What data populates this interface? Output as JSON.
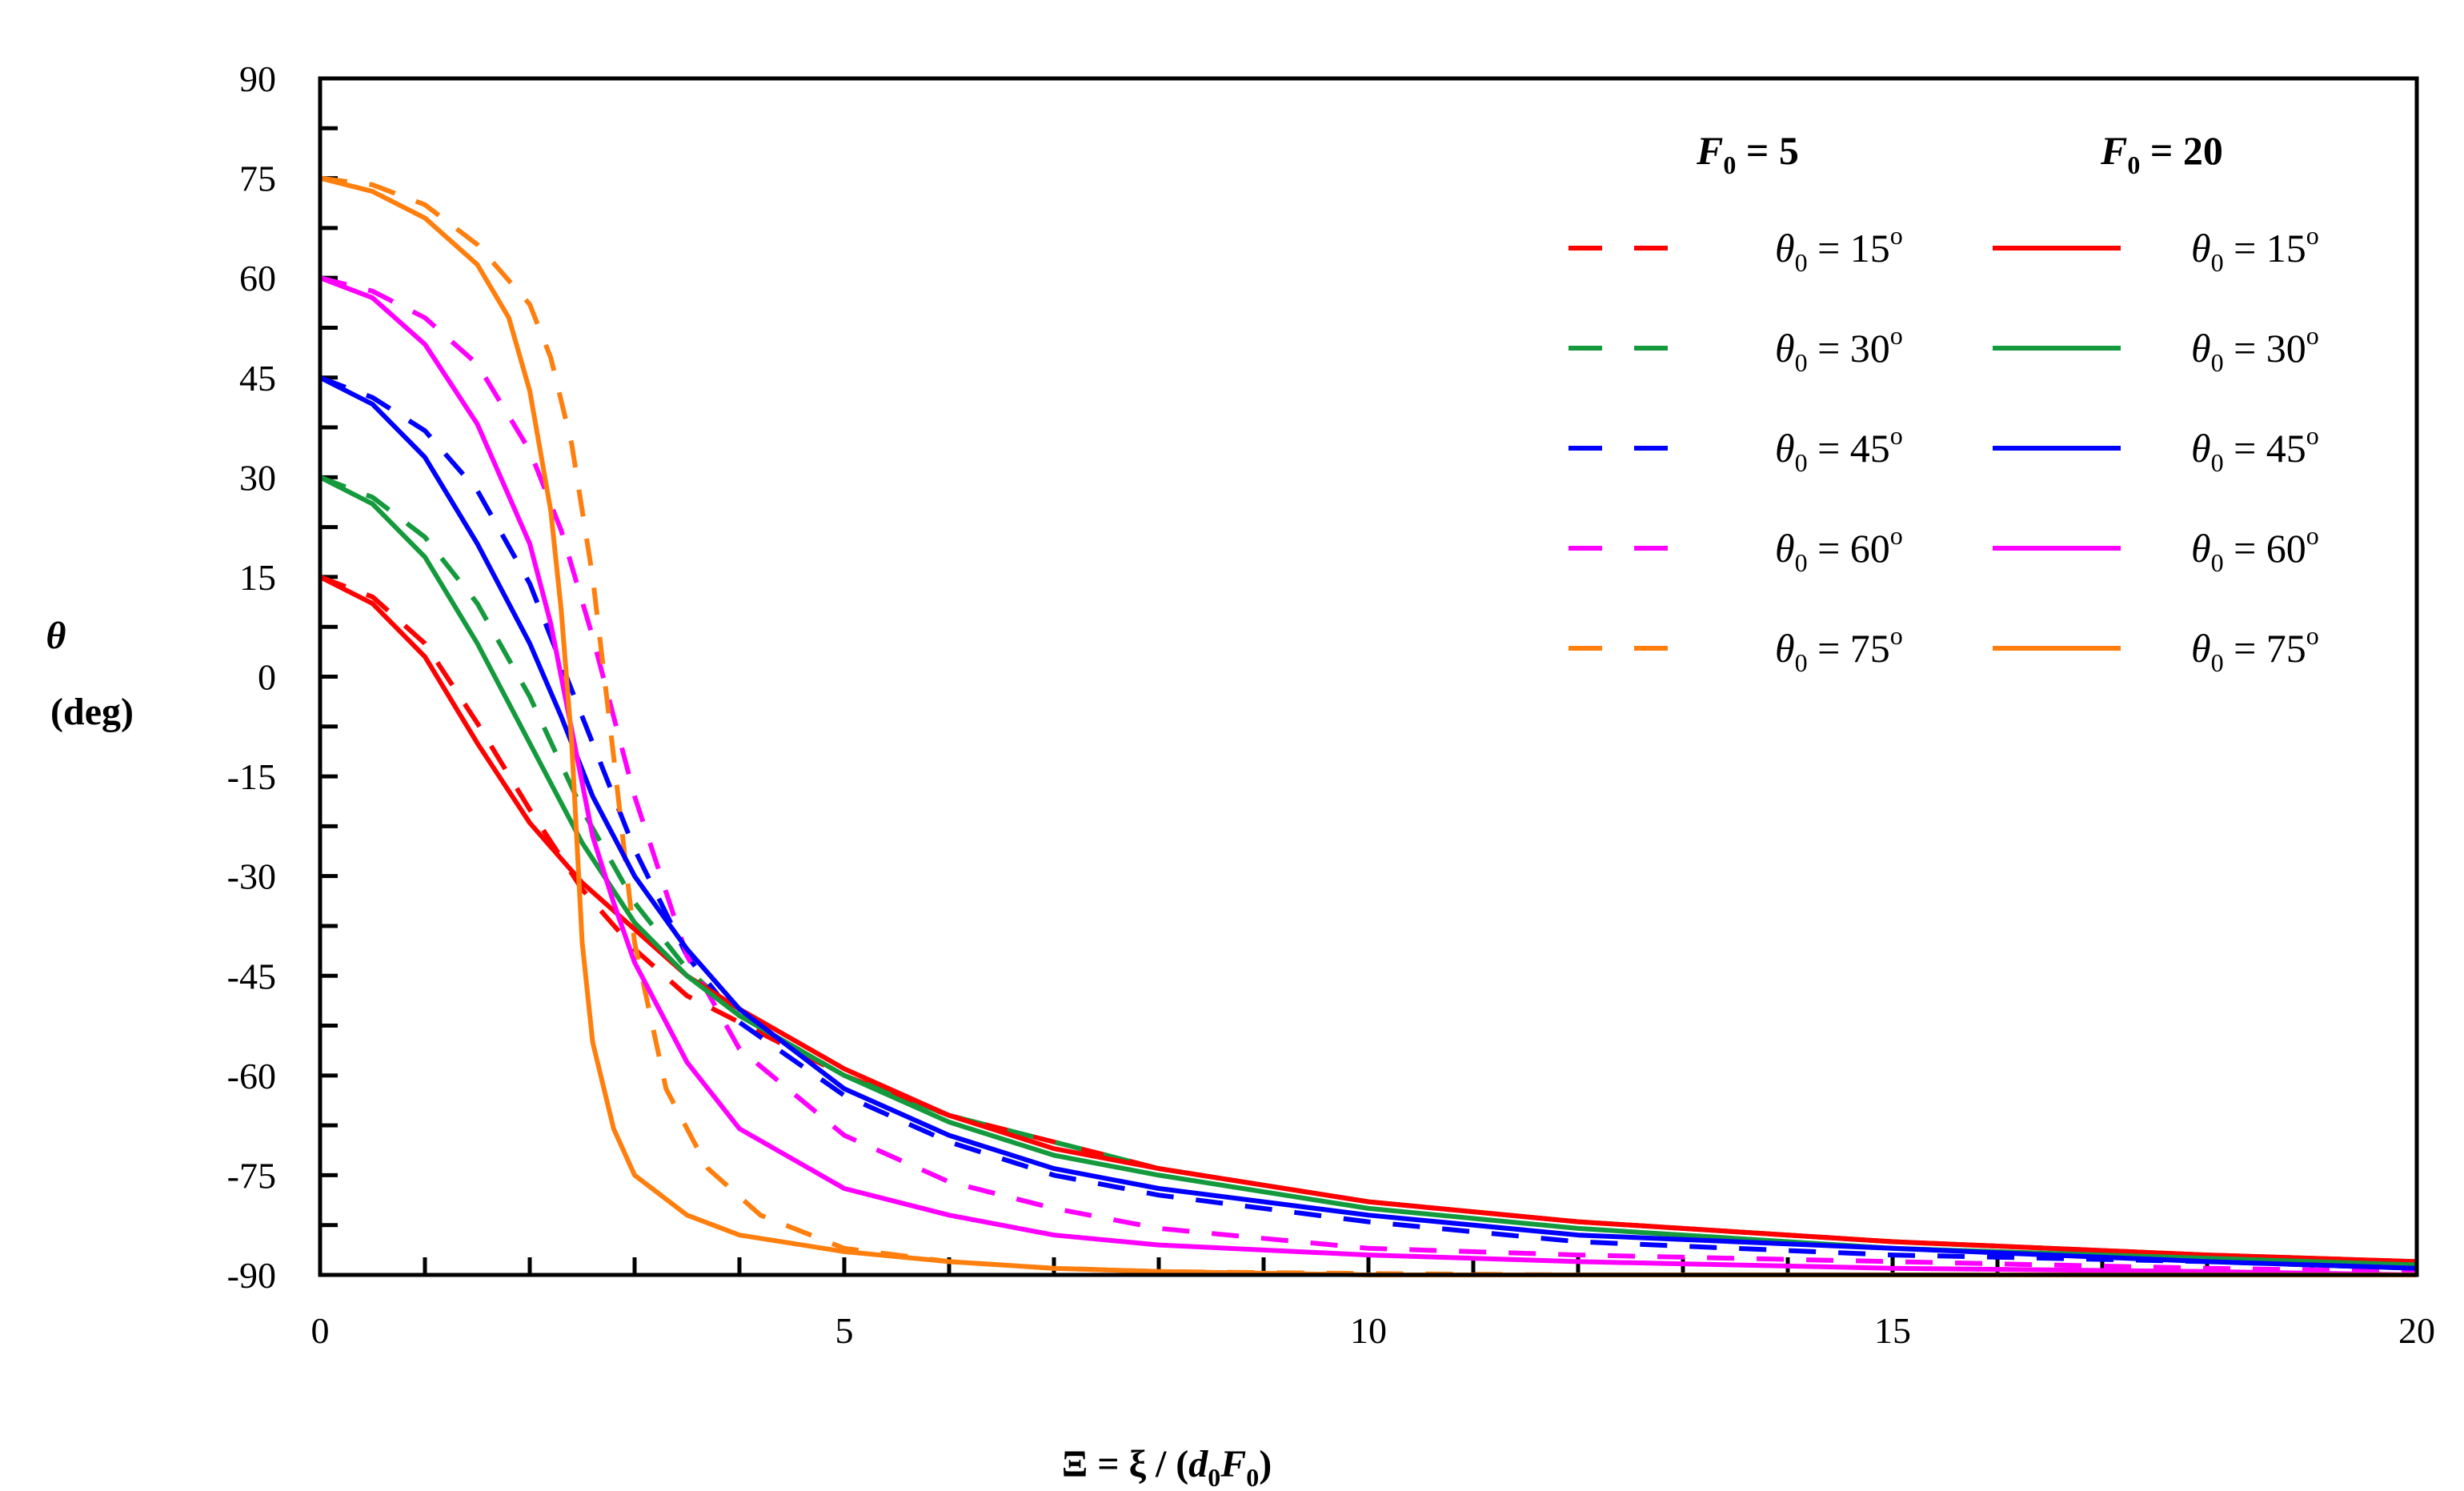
{
  "chart_data": {
    "type": "line",
    "xlabel": "Ξ = ξ / (d0F0)",
    "xlabel_parts": {
      "lead": "Ξ = ξ / (",
      "d": "d",
      "d_sub": "0",
      "F": "F",
      "F_sub": "0",
      "tail": ")"
    },
    "ylabel": "θ (deg)",
    "ylabel_parts": {
      "symbol": "θ",
      "unit": "(deg)"
    },
    "xlim": [
      0,
      20
    ],
    "ylim": [
      -90,
      90
    ],
    "xticks": [
      0,
      5,
      10,
      15,
      20
    ],
    "xtick_labels": [
      "0",
      "5",
      "10",
      "15",
      "20"
    ],
    "yticks": [
      90,
      75,
      60,
      45,
      30,
      15,
      0,
      -15,
      -30,
      -45,
      -60,
      -75,
      -90
    ],
    "ytick_labels": [
      "90",
      "75",
      "60",
      "45",
      "30",
      "15",
      "0",
      "-15",
      "-30",
      "-45",
      "-60",
      "-75",
      "-90"
    ],
    "legend": {
      "placement": "top-right",
      "groups": [
        {
          "head_base": "F",
          "head_sub": "0",
          "head_tail": " = 5",
          "style": "dashed"
        },
        {
          "head_base": "F",
          "head_sub": "0",
          "head_tail": " = 20",
          "style": "solid"
        }
      ],
      "entries": [
        {
          "base": "θ",
          "sub": "0",
          "mid": " = 15",
          "sup": "o",
          "color": "#ff0000"
        },
        {
          "base": "θ",
          "sub": "0",
          "mid": " = 30",
          "sup": "o",
          "color": "#149a3c"
        },
        {
          "base": "θ",
          "sub": "0",
          "mid": " = 45",
          "sup": "o",
          "color": "#0000ff"
        },
        {
          "base": "θ",
          "sub": "0",
          "mid": " = 60",
          "sup": "o",
          "color": "#ff00ff"
        },
        {
          "base": "θ",
          "sub": "0",
          "mid": " = 75",
          "sup": "o",
          "color": "#ff7f0e"
        }
      ]
    },
    "series": [
      {
        "name": "F0 = 5, θ0 = 15°",
        "style": "dashed",
        "color": "#ff0000",
        "x": [
          0,
          0.5,
          1,
          1.5,
          2,
          2.5,
          3,
          3.5,
          4,
          5,
          6,
          7,
          8,
          10,
          12,
          15,
          18,
          20
        ],
        "y": [
          15,
          12,
          5,
          -7,
          -20,
          -32,
          -41,
          -48,
          -52,
          -60,
          -66,
          -70,
          -74,
          -79,
          -82,
          -85,
          -87,
          -88
        ]
      },
      {
        "name": "F0 = 5, θ0 = 30°",
        "style": "dashed",
        "color": "#149a3c",
        "x": [
          0,
          0.5,
          1,
          1.5,
          2,
          2.5,
          3,
          3.5,
          4,
          5,
          6,
          7,
          8,
          10,
          12,
          15,
          18,
          20
        ],
        "y": [
          30,
          27,
          21,
          11,
          -3,
          -20,
          -34,
          -44,
          -51,
          -60,
          -66,
          -70,
          -74,
          -79,
          -82,
          -85,
          -87,
          -88
        ]
      },
      {
        "name": "F0 = 5, θ0 = 45°",
        "style": "dashed",
        "color": "#0000ff",
        "x": [
          0,
          0.5,
          1,
          1.5,
          2,
          2.5,
          3,
          3.5,
          4,
          5,
          6,
          7,
          8,
          10,
          12,
          15,
          18,
          20
        ],
        "y": [
          45,
          42,
          37,
          28,
          14,
          -6,
          -26,
          -42,
          -52,
          -63,
          -70,
          -75,
          -78,
          -82,
          -85,
          -87,
          -88,
          -89
        ]
      },
      {
        "name": "F0 = 5, θ0 = 60°",
        "style": "dashed",
        "color": "#ff00ff",
        "x": [
          0,
          0.5,
          1,
          1.5,
          2,
          2.3,
          2.6,
          3,
          3.5,
          4,
          5,
          6,
          7,
          8,
          10,
          12,
          15,
          18,
          20
        ],
        "y": [
          60,
          58,
          54,
          47,
          34,
          22,
          6,
          -18,
          -42,
          -56,
          -69,
          -76,
          -80,
          -83,
          -86,
          -87,
          -88,
          -89,
          -89.5
        ]
      },
      {
        "name": "F0 = 5, θ0 = 75°",
        "style": "dashed",
        "color": "#ff7f0e",
        "x": [
          0,
          0.5,
          1,
          1.5,
          2,
          2.2,
          2.4,
          2.6,
          2.8,
          3,
          3.3,
          3.7,
          4.2,
          5,
          6,
          7,
          8,
          10,
          12,
          15,
          20
        ],
        "y": [
          75,
          74,
          71,
          65,
          56,
          48,
          35,
          15,
          -12,
          -40,
          -62,
          -74,
          -81,
          -86,
          -88,
          -89,
          -89.5,
          -89.8,
          -90,
          -90,
          -90
        ]
      },
      {
        "name": "F0 = 20, θ0 = 15°",
        "style": "solid",
        "color": "#ff0000",
        "x": [
          0,
          0.5,
          1,
          1.5,
          2,
          2.5,
          3,
          3.5,
          4,
          5,
          6,
          7,
          8,
          10,
          12,
          15,
          18,
          20
        ],
        "y": [
          15,
          11,
          3,
          -10,
          -22,
          -31,
          -38,
          -45,
          -50,
          -59,
          -66,
          -71,
          -74,
          -79,
          -82,
          -85,
          -87,
          -88
        ]
      },
      {
        "name": "F0 = 20, θ0 = 30°",
        "style": "solid",
        "color": "#149a3c",
        "x": [
          0,
          0.5,
          1,
          1.5,
          2,
          2.5,
          3,
          3.5,
          4,
          5,
          6,
          7,
          8,
          10,
          12,
          15,
          18,
          20
        ],
        "y": [
          30,
          26,
          18,
          5,
          -10,
          -25,
          -37,
          -45,
          -51,
          -60,
          -67,
          -72,
          -75,
          -80,
          -83,
          -86,
          -87.5,
          -88.5
        ]
      },
      {
        "name": "F0 = 20, θ0 = 45°",
        "style": "solid",
        "color": "#0000ff",
        "x": [
          0,
          0.5,
          1,
          1.5,
          2,
          2.3,
          2.6,
          3,
          3.5,
          4,
          5,
          6,
          7,
          8,
          10,
          12,
          15,
          18,
          20
        ],
        "y": [
          45,
          41,
          33,
          20,
          5,
          -6,
          -18,
          -30,
          -41,
          -50,
          -62,
          -69,
          -74,
          -77,
          -81,
          -84,
          -86,
          -88,
          -89
        ]
      },
      {
        "name": "F0 = 20, θ0 = 60°",
        "style": "solid",
        "color": "#ff00ff",
        "x": [
          0,
          0.5,
          1,
          1.5,
          2,
          2.2,
          2.4,
          2.6,
          2.8,
          3,
          3.5,
          4,
          5,
          6,
          7,
          8,
          10,
          12,
          15,
          18,
          20
        ],
        "y": [
          60,
          57,
          50,
          38,
          20,
          8,
          -8,
          -24,
          -34,
          -43,
          -58,
          -68,
          -77,
          -81,
          -84,
          -85.5,
          -87,
          -88,
          -89,
          -89.5,
          -90
        ]
      },
      {
        "name": "F0 = 20, θ0 = 75°",
        "style": "solid",
        "color": "#ff7f0e",
        "x": [
          0,
          0.5,
          1,
          1.5,
          1.8,
          2.0,
          2.2,
          2.3,
          2.4,
          2.45,
          2.5,
          2.6,
          2.8,
          3,
          3.5,
          4,
          5,
          6,
          7,
          8,
          10,
          12,
          15,
          20
        ],
        "y": [
          75,
          73,
          69,
          62,
          54,
          43,
          25,
          10,
          -10,
          -25,
          -40,
          -55,
          -68,
          -75,
          -81,
          -84,
          -86.5,
          -88,
          -89,
          -89.5,
          -90,
          -90,
          -90,
          -90
        ]
      }
    ]
  }
}
